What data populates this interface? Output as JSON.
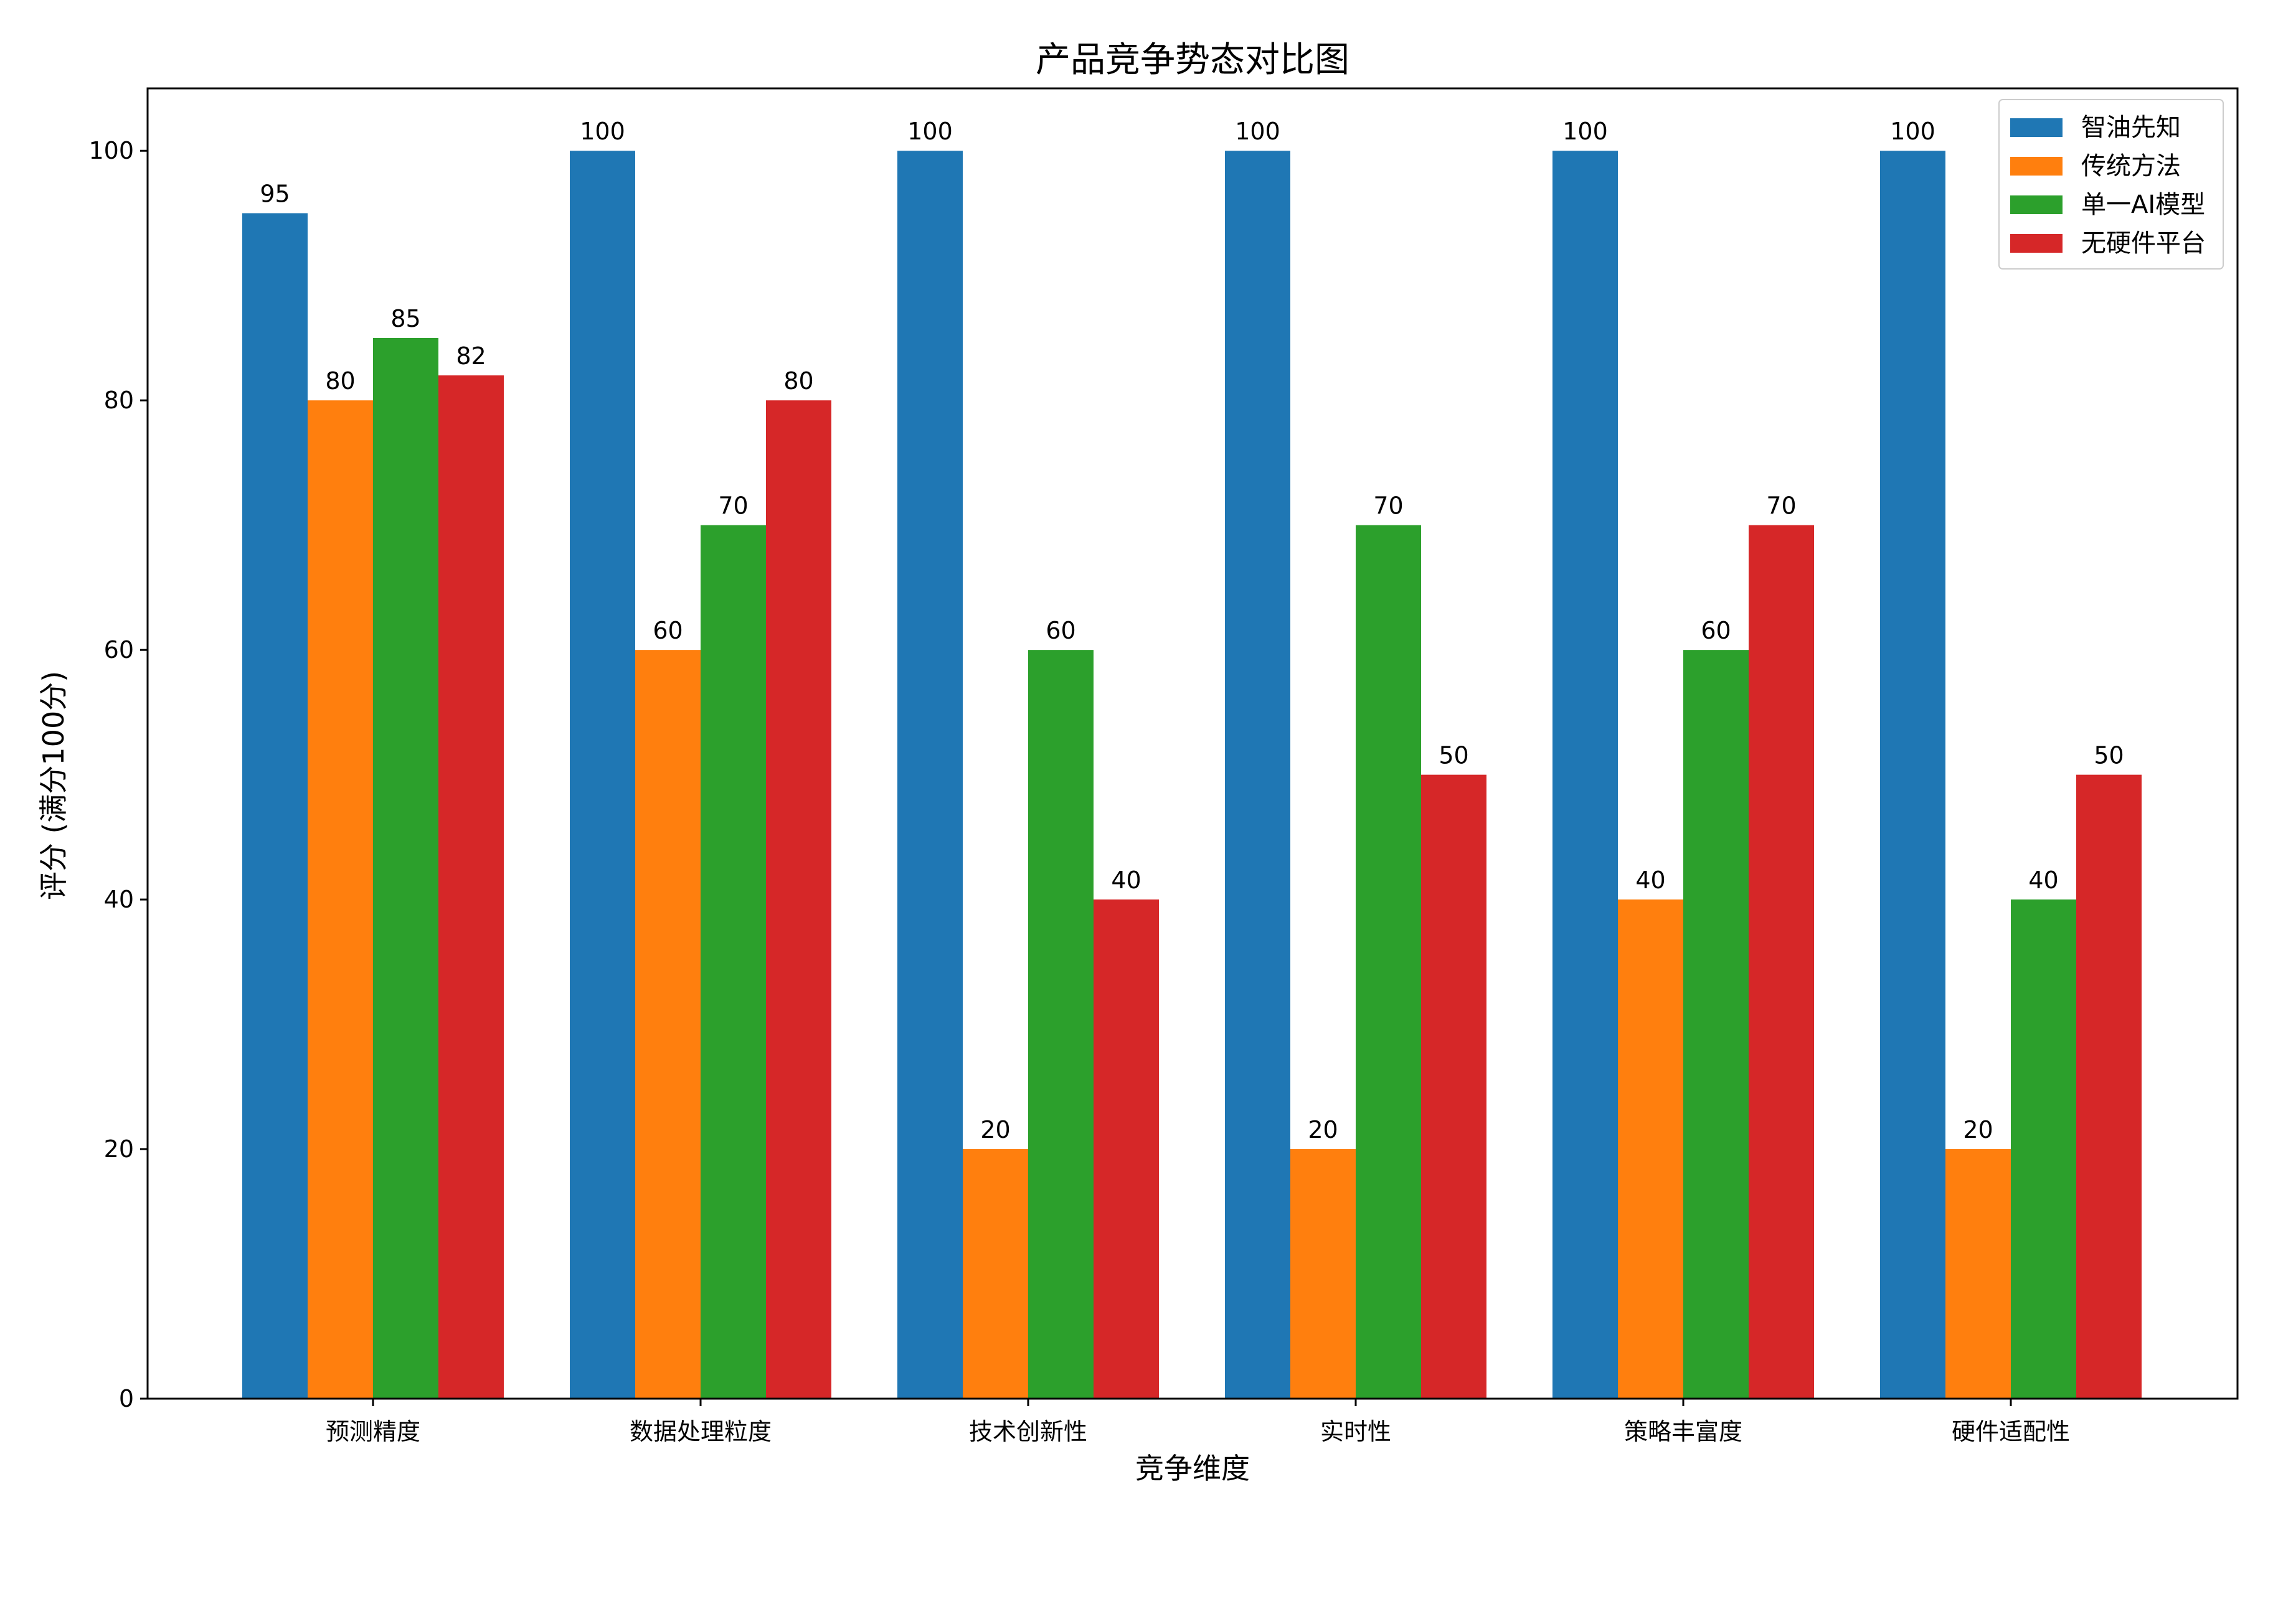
{
  "chart_data": {
    "type": "bar",
    "title": "产品竞争势态对比图",
    "xlabel": "竞争维度",
    "ylabel": "评分 (满分100分)",
    "ylim": [
      0,
      105
    ],
    "yticks": [
      0,
      20,
      40,
      60,
      80,
      100
    ],
    "categories": [
      "预测精度",
      "数据处理粒度",
      "技术创新性",
      "实时性",
      "策略丰富度",
      "硬件适配性"
    ],
    "series": [
      {
        "name": "智油先知",
        "color": "#1f77b4",
        "values": [
          95,
          100,
          100,
          100,
          100,
          100
        ]
      },
      {
        "name": "传统方法",
        "color": "#ff7f0e",
        "values": [
          80,
          60,
          20,
          20,
          40,
          20
        ]
      },
      {
        "name": "单一AI模型",
        "color": "#2ca02c",
        "values": [
          85,
          70,
          60,
          70,
          60,
          40
        ]
      },
      {
        "name": "无硬件平台",
        "color": "#d62728",
        "values": [
          82,
          80,
          40,
          50,
          70,
          50
        ]
      }
    ],
    "legend_position": "top-right",
    "grid": false,
    "data_labels": true
  }
}
